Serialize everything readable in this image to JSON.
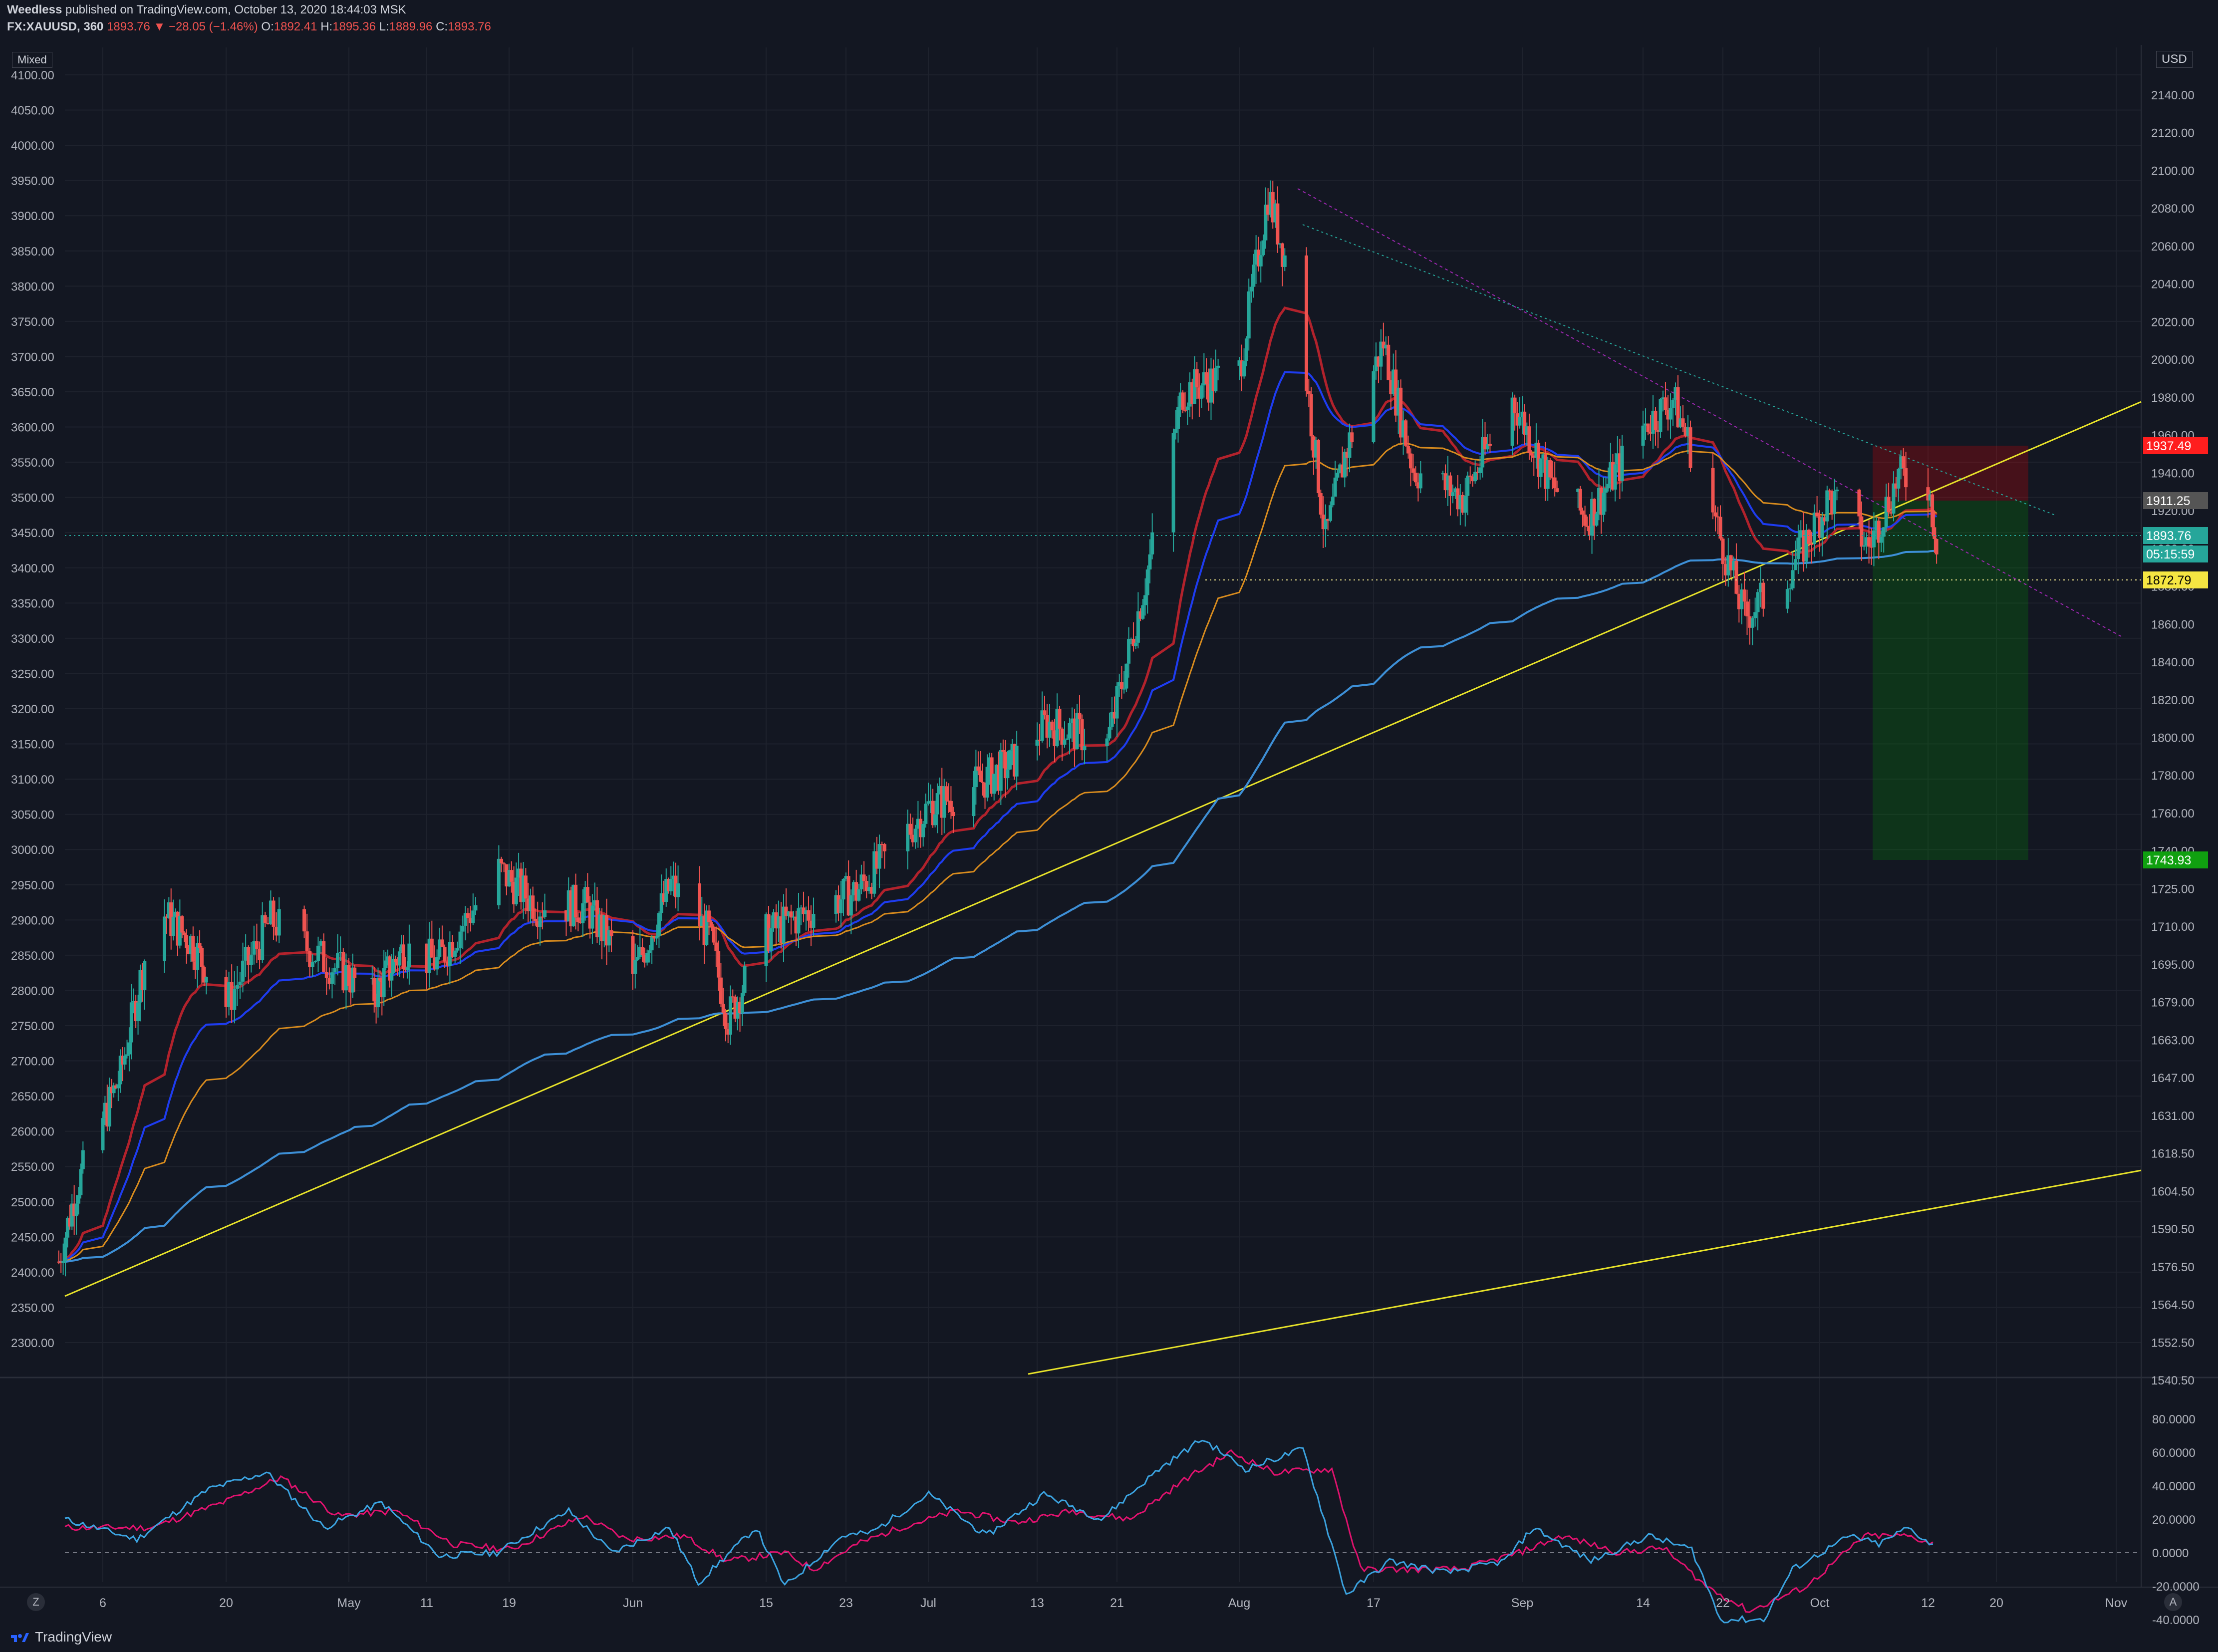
{
  "header": {
    "author": "Weedless",
    "published": "published on TradingView.com, October 13, 2020 18:44:03 MSK",
    "symbol": "FX:XAUUSD, 360",
    "last": "1893.76",
    "change": "−28.05 (−1.46%)",
    "o_label": "O:",
    "o": "1892.41",
    "h_label": "H:",
    "h": "1895.36",
    "l_label": "L:",
    "l": "1889.96",
    "c_label": "C:",
    "c": "1893.76"
  },
  "scale_mode": "Mixed",
  "currency": "USD",
  "brand": "TradingView",
  "colors": {
    "background": "#131722",
    "grid": "#1e222d",
    "up": "#26a69a",
    "down": "#ef5350",
    "ma_red": "#b2222c",
    "ma_blue": "#1e3cf0",
    "ma_orange": "#d98c1e",
    "ma_lightblue": "#3d8fd6",
    "trend": "#e8e32a",
    "stop": "#ff1e1e",
    "target": "#10a010",
    "osc_fast": "#3ba3e0",
    "osc_slow": "#e0126e"
  },
  "chart_data": [
    {
      "type": "candlestick",
      "title": "",
      "x_ticks": [
        "6",
        "20",
        "May",
        "11",
        "19",
        "Jun",
        "15",
        "23",
        "Jul",
        "13",
        "21",
        "Aug",
        "17",
        "Sep",
        "14",
        "22",
        "Oct",
        "12",
        "20",
        "Nov"
      ],
      "right_axis_ticks": [
        "2140.00",
        "2120.00",
        "2100.00",
        "2080.00",
        "2060.00",
        "2040.00",
        "2020.00",
        "2000.00",
        "1980.00",
        "1960.00",
        "1940.00",
        "1920.00",
        "1900.00",
        "1880.00",
        "1860.00",
        "1840.00",
        "1820.00",
        "1800.00",
        "1780.00",
        "1760.00",
        "1740.00",
        "1725.00",
        "1710.00",
        "1695.00",
        "1679.00",
        "1663.00",
        "1647.00",
        "1631.00",
        "1618.50",
        "1604.50",
        "1590.50",
        "1576.50",
        "1564.50",
        "1552.50",
        "1540.50"
      ],
      "left_axis_ticks": [
        "4100.00",
        "4050.00",
        "4000.00",
        "3950.00",
        "3900.00",
        "3850.00",
        "3800.00",
        "3750.00",
        "3700.00",
        "3650.00",
        "3600.00",
        "3550.00",
        "3500.00",
        "3450.00",
        "3400.00",
        "3350.00",
        "3300.00",
        "3250.00",
        "3200.00",
        "3150.00",
        "3100.00",
        "3050.00",
        "3000.00",
        "2950.00",
        "2900.00",
        "2850.00",
        "2800.00",
        "2750.00",
        "2700.00",
        "2650.00",
        "2600.00",
        "2550.00",
        "2500.00",
        "2450.00",
        "2400.00",
        "2350.00",
        "2300.00"
      ],
      "price_labels": [
        {
          "value": "1937.49",
          "role": "stop"
        },
        {
          "value": "1911.25",
          "role": "entry"
        },
        {
          "value": "1893.76",
          "role": "last"
        },
        {
          "value": "05:15:59",
          "role": "countdown"
        },
        {
          "value": "1872.79",
          "role": "level"
        },
        {
          "value": "1743.93",
          "role": "target"
        }
      ],
      "close_anchors": [
        [
          "Apr 1",
          2415
        ],
        [
          "Apr 3",
          2520
        ],
        [
          "Apr 8",
          2680
        ],
        [
          "Apr 12",
          2920
        ],
        [
          "Apr 16",
          2870
        ],
        [
          "Apr 20",
          2780
        ],
        [
          "Apr 24",
          2900
        ],
        [
          "Apr 29",
          2840
        ],
        [
          "May 4",
          2790
        ],
        [
          "May 8",
          2860
        ],
        [
          "May 12",
          2840
        ],
        [
          "May 18",
          2970
        ],
        [
          "May 22",
          2920
        ],
        [
          "May 27",
          2920
        ],
        [
          "Jun 1",
          2820
        ],
        [
          "Jun 5",
          2950
        ],
        [
          "Jun 9",
          2880
        ],
        [
          "Jun 11",
          2760
        ],
        [
          "Jun 15",
          2880
        ],
        [
          "Jun 19",
          2910
        ],
        [
          "Jun 24",
          2940
        ],
        [
          "Jul 1",
          3060
        ],
        [
          "Jul 6",
          3090
        ],
        [
          "Jul 10",
          3120
        ],
        [
          "Jul 14",
          3180
        ],
        [
          "Jul 20",
          3150
        ],
        [
          "Jul 24",
          3380
        ],
        [
          "Jul 28",
          3650
        ],
        [
          "Aug 3",
          3680
        ],
        [
          "Aug 6",
          3930
        ],
        [
          "Aug 9",
          3780
        ],
        [
          "Aug 12",
          3440
        ],
        [
          "Aug 14",
          3560
        ],
        [
          "Aug 18",
          3720
        ],
        [
          "Aug 21",
          3540
        ],
        [
          "Aug 26",
          3500
        ],
        [
          "Aug 31",
          3640
        ],
        [
          "Sep 4",
          3520
        ],
        [
          "Sep 8",
          3470
        ],
        [
          "Sep 14",
          3600
        ],
        [
          "Sep 17",
          3640
        ],
        [
          "Sep 21",
          3480
        ],
        [
          "Sep 24",
          3330
        ],
        [
          "Sep 28",
          3390
        ],
        [
          "Oct 2",
          3500
        ],
        [
          "Oct 6",
          3430
        ],
        [
          "Oct 9",
          3530
        ],
        [
          "Oct 12",
          3520
        ],
        [
          "Oct 13",
          3440
        ]
      ],
      "oscillator": {
        "ticks": [
          "80.0000",
          "60.0000",
          "40.0000",
          "20.0000",
          "0.0000",
          "-20.0000",
          "-40.0000"
        ],
        "fast_anchors": [
          [
            0,
            20
          ],
          [
            5,
            8
          ],
          [
            10,
            38
          ],
          [
            14,
            48
          ],
          [
            18,
            15
          ],
          [
            22,
            30
          ],
          [
            26,
            -2
          ],
          [
            30,
            0
          ],
          [
            35,
            25
          ],
          [
            38,
            0
          ],
          [
            42,
            15
          ],
          [
            44,
            -18
          ],
          [
            48,
            15
          ],
          [
            50,
            -20
          ],
          [
            54,
            10
          ],
          [
            56,
            12
          ],
          [
            60,
            35
          ],
          [
            64,
            10
          ],
          [
            68,
            35
          ],
          [
            72,
            20
          ],
          [
            76,
            50
          ],
          [
            79,
            68
          ],
          [
            82,
            50
          ],
          [
            86,
            62
          ],
          [
            88,
            5
          ],
          [
            89,
            -25
          ],
          [
            92,
            -5
          ],
          [
            96,
            -12
          ],
          [
            100,
            -5
          ],
          [
            102,
            15
          ],
          [
            106,
            -5
          ],
          [
            110,
            10
          ],
          [
            113,
            2
          ],
          [
            115,
            -40
          ],
          [
            118,
            -40
          ],
          [
            120,
            -10
          ],
          [
            124,
            10
          ],
          [
            126,
            5
          ],
          [
            128,
            15
          ],
          [
            130,
            3
          ]
        ],
        "slow_anchors": [
          [
            0,
            15
          ],
          [
            6,
            15
          ],
          [
            11,
            30
          ],
          [
            15,
            45
          ],
          [
            19,
            22
          ],
          [
            23,
            25
          ],
          [
            27,
            5
          ],
          [
            31,
            2
          ],
          [
            36,
            22
          ],
          [
            39,
            8
          ],
          [
            43,
            10
          ],
          [
            46,
            -5
          ],
          [
            50,
            0
          ],
          [
            52,
            -10
          ],
          [
            55,
            5
          ],
          [
            58,
            15
          ],
          [
            62,
            25
          ],
          [
            66,
            18
          ],
          [
            70,
            25
          ],
          [
            74,
            20
          ],
          [
            78,
            45
          ],
          [
            81,
            60
          ],
          [
            84,
            48
          ],
          [
            88,
            50
          ],
          [
            90,
            -10
          ],
          [
            93,
            -10
          ],
          [
            97,
            -10
          ],
          [
            101,
            0
          ],
          [
            104,
            10
          ],
          [
            108,
            0
          ],
          [
            111,
            3
          ],
          [
            114,
            -20
          ],
          [
            117,
            -35
          ],
          [
            121,
            -20
          ],
          [
            125,
            10
          ],
          [
            128,
            10
          ],
          [
            130,
            5
          ]
        ]
      }
    }
  ]
}
